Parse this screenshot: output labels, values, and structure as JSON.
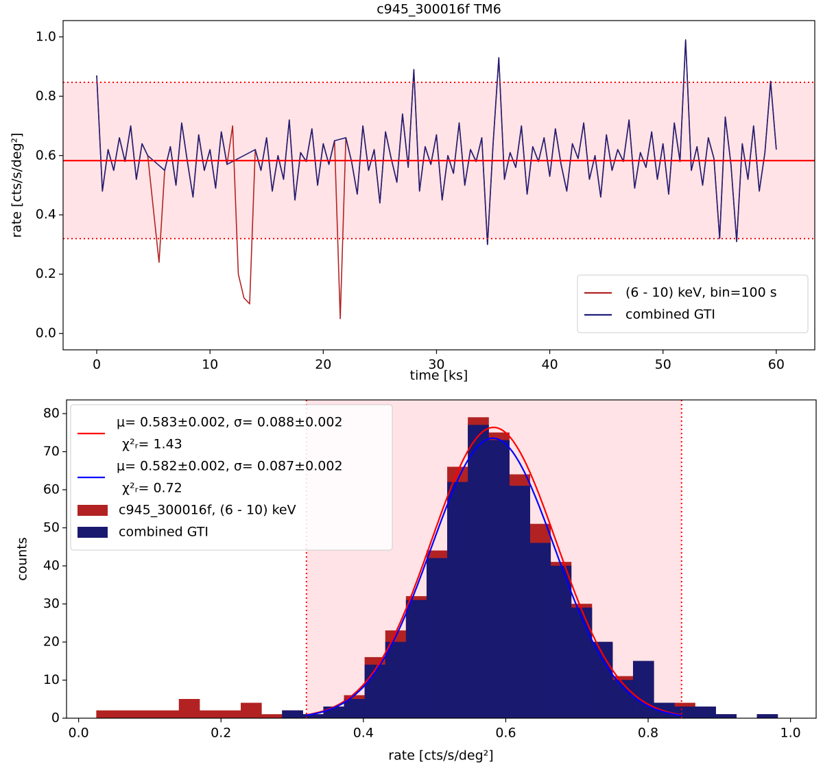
{
  "chart_data": [
    {
      "type": "line",
      "title": "c945_300016f TM6",
      "xlabel": "time [ks]",
      "ylabel": "rate [cts/s/deg²]",
      "xlim": [
        -2.97,
        63.4
      ],
      "ylim": [
        -0.055,
        1.055
      ],
      "xticks": [
        0,
        10,
        20,
        30,
        40,
        50,
        60
      ],
      "yticks": [
        {
          "value": 0,
          "label": "0.0"
        },
        {
          "value": 0.2,
          "label": "0.2"
        },
        {
          "value": 0.4,
          "label": "0.4"
        },
        {
          "value": 0.6,
          "label": "0.6"
        },
        {
          "value": 0.8,
          "label": "0.8"
        },
        {
          "value": 1,
          "label": "1.0"
        }
      ],
      "mean": 0.583,
      "mean_color": "#ff0000",
      "bounds": [
        0.32,
        0.847
      ],
      "band_color": "#ffe3e6",
      "legend": "lower right",
      "series": [
        {
          "name": "(6 - 10) keV, bin=100 s",
          "color": "#b22222",
          "x": [
            0,
            0.5,
            1,
            1.5,
            2,
            2.5,
            3,
            3.5,
            4,
            4.5,
            5,
            5.5,
            6,
            6.5,
            7,
            7.5,
            8,
            8.5,
            9,
            9.5,
            10,
            10.5,
            11,
            11.5,
            12,
            12.5,
            13,
            13.5,
            14,
            14.5,
            15,
            15.5,
            16,
            16.5,
            17,
            17.5,
            18,
            18.5,
            19,
            19.5,
            20,
            20.5,
            21,
            21.5,
            22,
            22.5,
            23,
            23.5,
            24,
            24.5,
            25,
            25.5,
            26,
            26.5,
            27,
            27.5,
            28,
            28.5,
            29,
            29.5,
            30,
            30.5,
            31,
            31.5,
            32,
            32.5,
            33,
            33.5,
            34,
            34.5,
            35,
            35.5,
            36,
            36.5,
            37,
            37.5,
            38,
            38.5,
            39,
            39.5,
            40,
            40.5,
            41,
            41.5,
            42,
            42.5,
            43,
            43.5,
            44,
            44.5,
            45,
            45.5,
            46,
            46.5,
            47,
            47.5,
            48,
            48.5,
            49,
            49.5,
            50,
            50.5,
            51,
            51.5,
            52,
            52.5,
            53,
            53.5,
            54,
            54.5,
            55,
            55.5,
            56,
            56.5,
            57,
            57.5,
            58,
            58.5,
            59,
            59.5,
            60
          ],
          "values": [
            0.87,
            0.48,
            0.62,
            0.55,
            0.66,
            0.58,
            0.7,
            0.52,
            0.64,
            0.6,
            0.42,
            0.24,
            0.55,
            0.63,
            0.5,
            0.71,
            0.58,
            0.46,
            0.67,
            0.55,
            0.62,
            0.49,
            0.68,
            0.57,
            0.7,
            0.2,
            0.12,
            0.1,
            0.62,
            0.55,
            0.66,
            0.48,
            0.6,
            0.52,
            0.72,
            0.45,
            0.61,
            0.58,
            0.69,
            0.5,
            0.64,
            0.57,
            0.65,
            0.05,
            0.66,
            0.58,
            0.47,
            0.7,
            0.55,
            0.62,
            0.44,
            0.68,
            0.59,
            0.51,
            0.74,
            0.56,
            0.89,
            0.48,
            0.63,
            0.57,
            0.67,
            0.45,
            0.6,
            0.54,
            0.71,
            0.5,
            0.62,
            0.58,
            0.66,
            0.3,
            0.64,
            0.93,
            0.52,
            0.61,
            0.56,
            0.7,
            0.47,
            0.63,
            0.58,
            0.66,
            0.53,
            0.69,
            0.57,
            0.48,
            0.64,
            0.59,
            0.71,
            0.52,
            0.6,
            0.46,
            0.67,
            0.55,
            0.62,
            0.58,
            0.72,
            0.49,
            0.61,
            0.56,
            0.68,
            0.52,
            0.64,
            0.47,
            0.71,
            0.58,
            0.99,
            0.55,
            0.63,
            0.5,
            0.66,
            0.59,
            0.32,
            0.73,
            0.57,
            0.31,
            0.64,
            0.52,
            0.7,
            0.48,
            0.61,
            0.85,
            0.62
          ]
        },
        {
          "name": "combined GTI",
          "color": "#1f1f78",
          "x": [
            0,
            0.5,
            1,
            1.5,
            2,
            2.5,
            3,
            3.5,
            4,
            4.5,
            6,
            6.5,
            7,
            7.5,
            8,
            8.5,
            9,
            9.5,
            10,
            10.5,
            11,
            11.5,
            14,
            14.5,
            15,
            15.5,
            16,
            16.5,
            17,
            17.5,
            18,
            18.5,
            19,
            19.5,
            20,
            20.5,
            21,
            22,
            22.5,
            23,
            23.5,
            24,
            24.5,
            25,
            25.5,
            26,
            26.5,
            27,
            27.5,
            28,
            28.5,
            29,
            29.5,
            30,
            30.5,
            31,
            31.5,
            32,
            32.5,
            33,
            33.5,
            34,
            34.5,
            35,
            35.5,
            36,
            36.5,
            37,
            37.5,
            38,
            38.5,
            39,
            39.5,
            40,
            40.5,
            41,
            41.5,
            42,
            42.5,
            43,
            43.5,
            44,
            44.5,
            45,
            45.5,
            46,
            46.5,
            47,
            47.5,
            48,
            48.5,
            49,
            49.5,
            50,
            50.5,
            51,
            51.5,
            52,
            52.5,
            53,
            53.5,
            54,
            54.5,
            55,
            55.5,
            56,
            56.5,
            57,
            57.5,
            58,
            58.5,
            59,
            59.5,
            60
          ],
          "values": [
            0.87,
            0.48,
            0.62,
            0.55,
            0.66,
            0.58,
            0.7,
            0.52,
            0.64,
            0.6,
            0.55,
            0.63,
            0.5,
            0.71,
            0.58,
            0.46,
            0.67,
            0.55,
            0.62,
            0.49,
            0.68,
            0.57,
            0.62,
            0.55,
            0.66,
            0.48,
            0.6,
            0.52,
            0.72,
            0.45,
            0.61,
            0.58,
            0.69,
            0.5,
            0.64,
            0.57,
            0.65,
            0.66,
            0.58,
            0.47,
            0.7,
            0.55,
            0.62,
            0.44,
            0.68,
            0.59,
            0.51,
            0.74,
            0.56,
            0.89,
            0.48,
            0.63,
            0.57,
            0.67,
            0.45,
            0.6,
            0.54,
            0.71,
            0.5,
            0.62,
            0.58,
            0.66,
            0.3,
            0.64,
            0.93,
            0.52,
            0.61,
            0.56,
            0.7,
            0.47,
            0.63,
            0.58,
            0.66,
            0.53,
            0.69,
            0.57,
            0.48,
            0.64,
            0.59,
            0.71,
            0.52,
            0.6,
            0.46,
            0.67,
            0.55,
            0.62,
            0.58,
            0.72,
            0.49,
            0.61,
            0.56,
            0.68,
            0.52,
            0.64,
            0.47,
            0.71,
            0.58,
            0.99,
            0.55,
            0.63,
            0.5,
            0.66,
            0.59,
            0.32,
            0.73,
            0.57,
            0.31,
            0.64,
            0.52,
            0.7,
            0.48,
            0.61,
            0.85,
            0.62
          ]
        }
      ]
    },
    {
      "type": "histogram",
      "xlabel": "rate [cts/s/deg²]",
      "ylabel": "counts",
      "xlim": [
        -0.017,
        1.036
      ],
      "ylim": [
        0,
        83.6
      ],
      "xticks": [
        {
          "value": 0,
          "label": "0.0"
        },
        {
          "value": 0.2,
          "label": "0.2"
        },
        {
          "value": 0.4,
          "label": "0.4"
        },
        {
          "value": 0.6,
          "label": "0.6"
        },
        {
          "value": 0.8,
          "label": "0.8"
        },
        {
          "value": 1,
          "label": "1.0"
        }
      ],
      "yticks": [
        0,
        10,
        20,
        30,
        40,
        50,
        60,
        70,
        80
      ],
      "bounds": [
        0.32,
        0.847
      ],
      "bounds_color": "#ff0000",
      "band_color": "#ffe3e6",
      "legend": "upper left",
      "bins": [
        0.025,
        0.054,
        0.083,
        0.112,
        0.141,
        0.17,
        0.199,
        0.228,
        0.257,
        0.286,
        0.315,
        0.344,
        0.373,
        0.402,
        0.431,
        0.46,
        0.489,
        0.518,
        0.547,
        0.576,
        0.605,
        0.634,
        0.663,
        0.692,
        0.721,
        0.75,
        0.779,
        0.808,
        0.837,
        0.866,
        0.895,
        0.924,
        0.953,
        0.982
      ],
      "series": [
        {
          "name": "c945_300016f, (6 - 10) keV",
          "color": "#b22222",
          "values": [
            2,
            2,
            2,
            2,
            5,
            2,
            2,
            4,
            1,
            2,
            1,
            3,
            6,
            16,
            23,
            32,
            44,
            66,
            79,
            75,
            64,
            51,
            41,
            30,
            20,
            11,
            15,
            4,
            4,
            3,
            1,
            0,
            1
          ]
        },
        {
          "name": "combined GTI",
          "color": "#191970",
          "values": [
            0,
            0,
            0,
            0,
            0,
            0,
            0,
            0,
            0,
            2,
            1,
            3,
            5,
            14,
            20,
            31,
            42,
            62,
            77,
            73,
            61,
            46,
            40,
            29,
            20,
            10,
            15,
            4,
            3,
            3,
            1,
            0,
            1
          ]
        }
      ],
      "fits": [
        {
          "label": "μ= 0.583±0.002, σ= 0.088±0.002",
          "chi2_label": "χ²ᵣ= 1.43",
          "color": "#ff0000",
          "mu": 0.583,
          "sigma": 0.088,
          "series": 0
        },
        {
          "label": "μ= 0.582±0.002, σ= 0.087±0.002",
          "chi2_label": "χ²ᵣ= 0.72",
          "color": "#0000ff",
          "mu": 0.582,
          "sigma": 0.087,
          "series": 1
        }
      ]
    }
  ]
}
